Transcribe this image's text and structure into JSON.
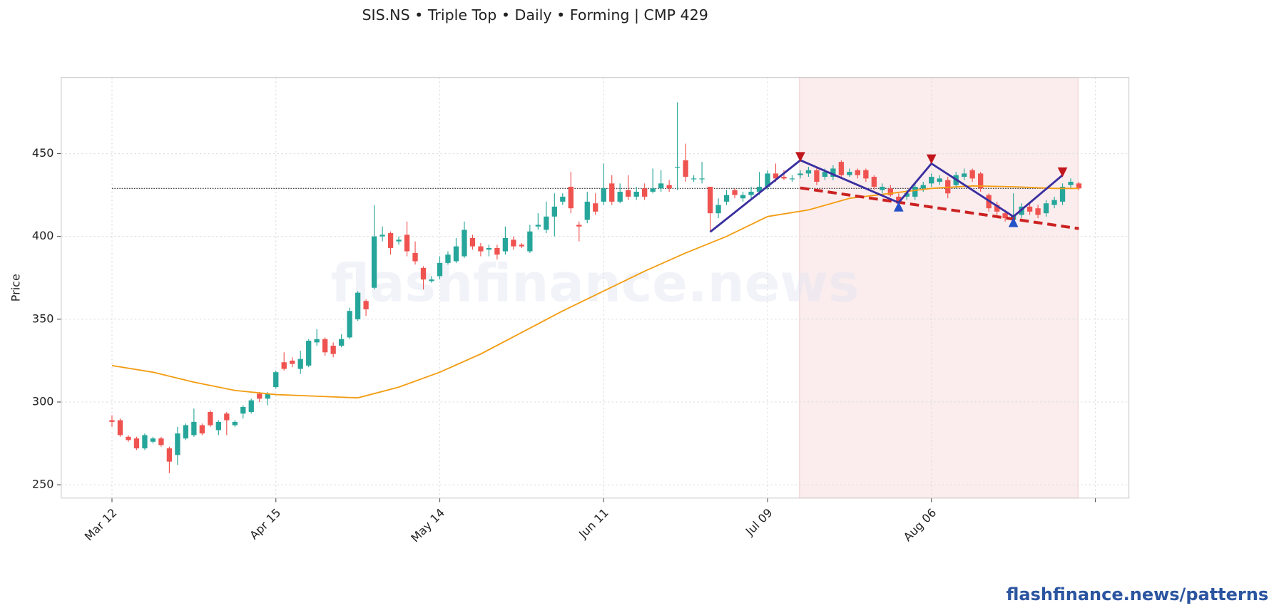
{
  "chart_data": {
    "type": "candlestick",
    "title": "SIS.NS  •  Triple Top  •  Daily  •  Forming  |  CMP 429",
    "ylabel": "Price",
    "watermark": "flashfinance.news",
    "footer": "flashfinance.news/patterns",
    "grid": true,
    "xlim": [
      -6.2,
      124.1
    ],
    "xticks": [
      0,
      20,
      40,
      60,
      80,
      100,
      120
    ],
    "xtick_labels": [
      "Mar 12",
      "Apr 15",
      "May 14",
      "Jun 11",
      "Jul 09",
      "Aug 06",
      null
    ],
    "ylim": [
      242,
      496
    ],
    "yticks": [
      250,
      300,
      350,
      400,
      450
    ],
    "up_color": "#26a69a",
    "down_color": "#ef5350",
    "open": [
      289,
      289,
      279,
      278,
      272,
      276,
      278,
      272,
      268,
      278,
      280,
      286,
      294,
      283,
      293,
      286,
      293,
      294,
      305,
      302,
      309,
      324,
      325,
      320,
      322,
      336,
      338,
      334,
      334,
      339,
      350,
      361,
      369,
      400,
      402,
      397,
      401,
      390,
      381,
      373,
      376,
      384,
      385,
      388,
      399,
      394,
      392,
      393,
      391,
      398,
      395,
      391,
      406,
      404,
      412,
      421,
      430,
      407,
      410,
      420,
      421,
      432,
      421,
      428,
      424,
      429,
      427,
      429,
      431,
      442,
      446,
      435,
      435,
      430,
      414,
      421,
      428,
      423,
      425,
      427,
      430,
      438,
      436,
      435,
      437,
      438,
      440,
      436,
      436,
      445,
      437,
      440,
      440,
      436,
      428,
      429,
      424,
      424,
      424,
      429,
      432,
      433,
      434,
      431,
      436,
      440,
      438,
      425,
      419,
      414,
      410,
      413,
      418,
      417,
      414,
      419,
      421,
      431,
      432
    ],
    "high": [
      292,
      290,
      280,
      279,
      281,
      279,
      279,
      273,
      285,
      287,
      296,
      287,
      295,
      289,
      294,
      289,
      298,
      302,
      306,
      306,
      319,
      330,
      327,
      331,
      338,
      344,
      339,
      336,
      341,
      357,
      367,
      362,
      419,
      406,
      403,
      400,
      409,
      397,
      382,
      376,
      388,
      391,
      399,
      409,
      401,
      396,
      395,
      395,
      406,
      400,
      396,
      407,
      414,
      421,
      426,
      426,
      439,
      409,
      427,
      426,
      444,
      437,
      432,
      437,
      430,
      432,
      441,
      440,
      434,
      481,
      456,
      437,
      445,
      430,
      423,
      428,
      429,
      427,
      430,
      439,
      440,
      444,
      440,
      437,
      440,
      442,
      442,
      441,
      443,
      446,
      441,
      441,
      441,
      437,
      432,
      431,
      426,
      428,
      432,
      433,
      438,
      437,
      436,
      439,
      441,
      441,
      439,
      426,
      421,
      416,
      426,
      420,
      420,
      419,
      422,
      424,
      432,
      435,
      433
    ],
    "low": [
      285,
      279,
      276,
      271,
      271,
      275,
      273,
      257,
      262,
      277,
      279,
      280,
      285,
      280,
      280,
      285,
      290,
      293,
      300,
      298,
      308,
      319,
      321,
      317,
      321,
      334,
      328,
      327,
      333,
      338,
      349,
      352,
      368,
      397,
      389,
      395,
      388,
      383,
      368,
      372,
      374,
      383,
      384,
      387,
      392,
      388,
      388,
      386,
      389,
      392,
      393,
      390,
      404,
      402,
      400,
      419,
      414,
      397,
      408,
      413,
      419,
      419,
      420,
      422,
      422,
      422,
      426,
      427,
      427,
      428,
      433,
      433,
      432,
      403,
      411,
      419,
      423,
      421,
      423,
      425,
      428,
      433,
      434,
      433,
      435,
      436,
      431,
      434,
      434,
      435,
      436,
      435,
      433,
      428,
      426,
      424,
      418,
      422,
      422,
      427,
      430,
      431,
      423,
      429,
      434,
      433,
      427,
      415,
      413,
      409,
      408,
      411,
      413,
      411,
      412,
      417,
      419,
      429,
      428
    ],
    "close": [
      288,
      280,
      277,
      272,
      280,
      278,
      274,
      264,
      281,
      286,
      288,
      281,
      286,
      288,
      289,
      288,
      297,
      301,
      302,
      305,
      318,
      320,
      323,
      326,
      337,
      338,
      330,
      329,
      338,
      355,
      366,
      356,
      400,
      401,
      393,
      398,
      391,
      385,
      374,
      374,
      384,
      389,
      394,
      404,
      394,
      391,
      393,
      389,
      399,
      394,
      394,
      403,
      407,
      412,
      418,
      424,
      417,
      406,
      421,
      415,
      429,
      421,
      427,
      424,
      427,
      424,
      429,
      432,
      429,
      442,
      436,
      435,
      435,
      414,
      419,
      425,
      425,
      425,
      427,
      430,
      438,
      435,
      435,
      435,
      438,
      440,
      433,
      439,
      441,
      437,
      439,
      437,
      435,
      430,
      430,
      425,
      420,
      426,
      430,
      431,
      436,
      435,
      426,
      437,
      438,
      435,
      429,
      417,
      415,
      411,
      413,
      418,
      415,
      413,
      420,
      422,
      430,
      433,
      429
    ],
    "moving_average": {
      "color": "#f39c12",
      "x": [
        0,
        5,
        10,
        15,
        20,
        25,
        30,
        35,
        40,
        45,
        50,
        55,
        60,
        65,
        70,
        75,
        80,
        85,
        90,
        95,
        100,
        105,
        110,
        115,
        118
      ],
      "values": [
        322,
        318,
        312,
        307,
        304.5,
        303.5,
        302.5,
        309,
        318,
        329,
        342,
        355,
        367,
        379,
        390,
        400,
        412,
        416,
        423,
        426,
        429,
        430.5,
        430,
        429,
        429
      ]
    },
    "resistance": {
      "color": "#333333",
      "value": 429
    },
    "pattern_window": {
      "color": "#f8e1e1",
      "x": [
        83.9,
        117.9
      ]
    },
    "pattern_line": {
      "color": "#3a2fa0",
      "x": [
        73,
        84,
        96,
        100,
        110,
        116
      ],
      "values": [
        402.7,
        446,
        420.4,
        444,
        412,
        437
      ]
    },
    "trendline": {
      "color": "#cc2222",
      "x": [
        84,
        118
      ],
      "values": [
        429.3,
        404.7
      ]
    },
    "peaks": {
      "color": "#c0161c",
      "x": [
        84,
        100,
        116
      ],
      "values": [
        448,
        446.6,
        438.7
      ]
    },
    "troughs": {
      "color": "#2451c8",
      "x": [
        96,
        110
      ],
      "values": [
        418,
        408.6
      ]
    }
  }
}
